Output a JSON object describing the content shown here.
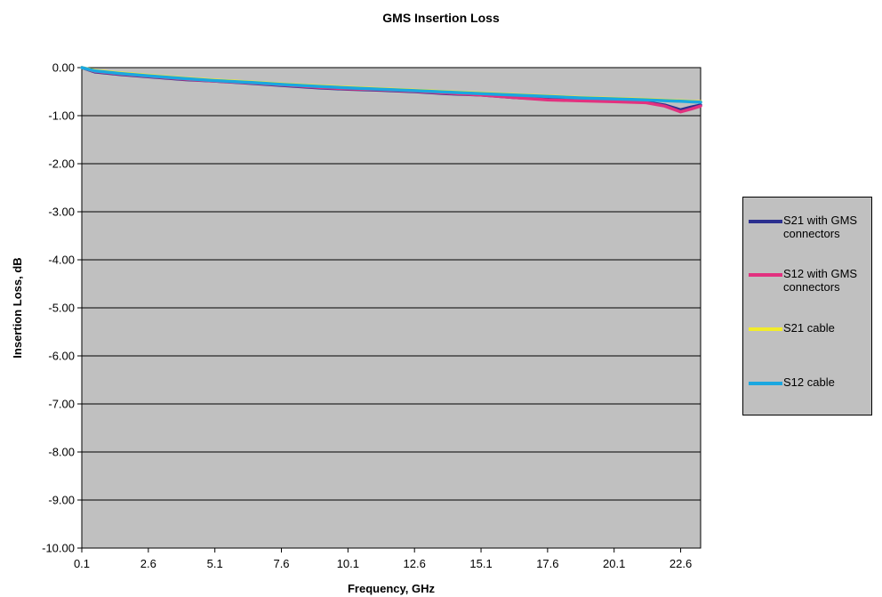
{
  "chart_data": {
    "type": "line",
    "title": "GMS Insertion Loss",
    "xlabel": "Frequency, GHz",
    "ylabel": "Insertion Loss, dB",
    "ylim": [
      -10,
      0
    ],
    "xlim": [
      0.1,
      23.35
    ],
    "xticks": [
      "0.1",
      "2.6",
      "5.1",
      "7.6",
      "10.1",
      "12.6",
      "15.1",
      "17.6",
      "20.1",
      "22.6"
    ],
    "yticks": [
      "0.00",
      "-1.00",
      "-2.00",
      "-3.00",
      "-4.00",
      "-5.00",
      "-6.00",
      "-7.00",
      "-8.00",
      "-9.00",
      "-10.00"
    ],
    "grid": "horizontal",
    "plot_background": "#c0c0c0",
    "legend_position": "right",
    "series": [
      {
        "name": "S21 with GMS connectors",
        "color": "#2b2f8f",
        "points": [
          [
            0.1,
            0.0
          ],
          [
            0.6,
            -0.09
          ],
          [
            1.5,
            -0.14
          ],
          [
            2.6,
            -0.19
          ],
          [
            4.0,
            -0.25
          ],
          [
            5.1,
            -0.28
          ],
          [
            6.5,
            -0.33
          ],
          [
            7.6,
            -0.37
          ],
          [
            9.0,
            -0.42
          ],
          [
            10.1,
            -0.45
          ],
          [
            11.3,
            -0.47
          ],
          [
            12.6,
            -0.5
          ],
          [
            13.8,
            -0.54
          ],
          [
            15.1,
            -0.57
          ],
          [
            16.3,
            -0.62
          ],
          [
            17.6,
            -0.66
          ],
          [
            18.8,
            -0.68
          ],
          [
            20.1,
            -0.7
          ],
          [
            21.3,
            -0.72
          ],
          [
            22.0,
            -0.78
          ],
          [
            22.6,
            -0.88
          ],
          [
            23.0,
            -0.82
          ],
          [
            23.35,
            -0.78
          ]
        ]
      },
      {
        "name": "S12 with GMS connectors",
        "color": "#e2317f",
        "points": [
          [
            0.1,
            0.0
          ],
          [
            0.6,
            -0.08
          ],
          [
            1.5,
            -0.13
          ],
          [
            2.6,
            -0.18
          ],
          [
            4.0,
            -0.24
          ],
          [
            5.1,
            -0.28
          ],
          [
            6.5,
            -0.32
          ],
          [
            7.6,
            -0.36
          ],
          [
            9.0,
            -0.41
          ],
          [
            10.1,
            -0.44
          ],
          [
            11.3,
            -0.46
          ],
          [
            12.6,
            -0.49
          ],
          [
            13.8,
            -0.53
          ],
          [
            15.1,
            -0.57
          ],
          [
            16.3,
            -0.62
          ],
          [
            17.6,
            -0.67
          ],
          [
            18.8,
            -0.69
          ],
          [
            20.1,
            -0.71
          ],
          [
            21.3,
            -0.73
          ],
          [
            22.0,
            -0.8
          ],
          [
            22.6,
            -0.92
          ],
          [
            23.0,
            -0.86
          ],
          [
            23.35,
            -0.8
          ]
        ]
      },
      {
        "name": "S21 cable",
        "color": "#f2ec2a",
        "points": [
          [
            0.1,
            0.0
          ],
          [
            0.6,
            -0.06
          ],
          [
            1.5,
            -0.11
          ],
          [
            2.6,
            -0.16
          ],
          [
            4.0,
            -0.22
          ],
          [
            5.1,
            -0.26
          ],
          [
            6.5,
            -0.3
          ],
          [
            7.6,
            -0.34
          ],
          [
            9.0,
            -0.38
          ],
          [
            10.1,
            -0.41
          ],
          [
            11.3,
            -0.44
          ],
          [
            12.6,
            -0.47
          ],
          [
            13.8,
            -0.5
          ],
          [
            15.1,
            -0.53
          ],
          [
            16.3,
            -0.56
          ],
          [
            17.6,
            -0.59
          ],
          [
            18.8,
            -0.62
          ],
          [
            20.1,
            -0.64
          ],
          [
            21.3,
            -0.66
          ],
          [
            22.6,
            -0.69
          ],
          [
            23.35,
            -0.71
          ]
        ]
      },
      {
        "name": "S12 cable",
        "color": "#1aa7e0",
        "points": [
          [
            0.1,
            0.0
          ],
          [
            0.6,
            -0.07
          ],
          [
            1.5,
            -0.12
          ],
          [
            2.6,
            -0.17
          ],
          [
            4.0,
            -0.23
          ],
          [
            5.1,
            -0.27
          ],
          [
            6.5,
            -0.31
          ],
          [
            7.6,
            -0.35
          ],
          [
            9.0,
            -0.39
          ],
          [
            10.1,
            -0.42
          ],
          [
            11.3,
            -0.45
          ],
          [
            12.6,
            -0.48
          ],
          [
            13.8,
            -0.51
          ],
          [
            15.1,
            -0.54
          ],
          [
            16.3,
            -0.57
          ],
          [
            17.6,
            -0.6
          ],
          [
            18.8,
            -0.63
          ],
          [
            20.1,
            -0.65
          ],
          [
            21.3,
            -0.67
          ],
          [
            22.6,
            -0.7
          ],
          [
            23.35,
            -0.72
          ]
        ]
      }
    ]
  }
}
